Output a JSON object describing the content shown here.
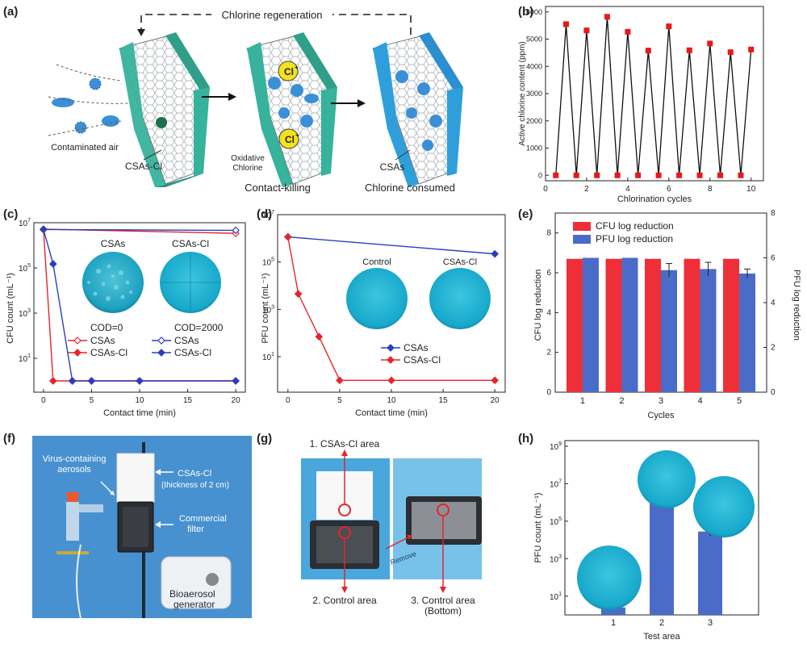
{
  "panel_labels": [
    "(a)",
    "(b)",
    "(c)",
    "(d)",
    "(e)",
    "(f)",
    "(g)",
    "(h)"
  ],
  "panel_a": {
    "regen_label": "Chlorine regeneration",
    "contaminated_air": "Contaminated air",
    "csas_cl": "CSAs-Cl",
    "oxidative_line1": "Oxidative",
    "oxidative_line2": "Chlorine",
    "cl_plus": "Cl",
    "cl_sup": "+",
    "csas": "CSAs",
    "contact_killing": "Contact-killing",
    "chlorine_consumed": "Chlorine consumed",
    "colors": {
      "teal": "#35b39a",
      "blue": "#2f9fdc",
      "microbe": "#3b8fd6",
      "badge": "#f3e21c"
    }
  },
  "panel_f": {
    "virus_line1": "Virus-containing",
    "virus_line2": "aerosols",
    "csas_line1": "CSAs-Cl",
    "csas_line2": "(thickness of 2 cm)",
    "commercial_line1": "Commercial",
    "commercial_line2": "filter",
    "bio_line1": "Bioaerosol",
    "bio_line2": "generator"
  },
  "panel_g": {
    "area1": "1. CSAs-Cl area",
    "area2": "2. Control area",
    "area3_line1": "3. Control area",
    "area3_line2": "(Bottom)",
    "remove": "Remove"
  },
  "chart_data": [
    {
      "id": "b",
      "type": "line",
      "xlabel": "Chlorination cycles",
      "ylabel": "Active chlorine content (ppm)",
      "xlim": [
        0,
        10.6
      ],
      "ylim": [
        -200,
        6200
      ],
      "xticks": [
        0,
        2,
        4,
        6,
        8,
        10
      ],
      "yticks": [
        0,
        1000,
        2000,
        3000,
        4000,
        5000,
        6000
      ],
      "series": [
        {
          "name": "Active chlorine",
          "x": [
            0.5,
            1,
            1.5,
            2,
            2.5,
            3,
            3.5,
            4,
            4.5,
            5,
            5.5,
            6,
            6.5,
            7,
            7.5,
            8,
            8.5,
            9,
            9.5,
            10
          ],
          "y": [
            0,
            5550,
            0,
            5320,
            0,
            5820,
            0,
            5270,
            0,
            4580,
            0,
            5470,
            0,
            4590,
            0,
            4840,
            0,
            4520,
            0,
            4620
          ],
          "line_color": "#111111",
          "marker_color": "#e8181b"
        }
      ]
    },
    {
      "id": "c",
      "type": "line",
      "xlabel": "Contact time (min)",
      "ylabel": "CFU count (mL⁻¹)",
      "xlim": [
        -1,
        21
      ],
      "ylog": true,
      "ylim_exp": [
        -0.5,
        7
      ],
      "xticks": [
        0,
        5,
        10,
        15,
        20
      ],
      "yticks": [
        {
          "value": 10,
          "base": "10",
          "exp": "1"
        },
        {
          "value": 1000,
          "base": "10",
          "exp": "3"
        },
        {
          "value": 100000,
          "base": "10",
          "exp": "5"
        },
        {
          "value": 10000000,
          "base": "10",
          "exp": "7"
        }
      ],
      "series": [
        {
          "name": "CSAs",
          "group": "COD=0",
          "color": "#e5252a",
          "marker": "diamond_open",
          "x": [
            0,
            20
          ],
          "y": [
            5200000,
            3400000
          ]
        },
        {
          "name": "CSAs-Cl",
          "group": "COD=0",
          "color": "#e5252a",
          "marker": "diamond",
          "x": [
            0,
            1,
            3,
            5,
            10,
            20
          ],
          "y": [
            5000000,
            1,
            1,
            1,
            1,
            1
          ]
        },
        {
          "name": "CSAs",
          "group": "COD=2000",
          "color": "#2b3fbd",
          "marker": "diamond_open",
          "x": [
            0,
            20
          ],
          "y": [
            5000000,
            4600000
          ]
        },
        {
          "name": "CSAs-Cl",
          "group": "COD=2000",
          "color": "#2b3fbd",
          "marker": "diamond",
          "x": [
            0,
            1,
            3,
            5,
            10,
            20
          ],
          "y": [
            5000000,
            150000,
            1,
            1,
            1,
            1
          ]
        }
      ],
      "legend": {
        "group1": "COD=0",
        "group2": "COD=2000"
      },
      "insets": [
        "CSAs",
        "CSAs-Cl"
      ]
    },
    {
      "id": "d",
      "type": "line",
      "xlabel": "Contact time (min)",
      "ylabel": "PFU count (mL⁻¹)",
      "xlim": [
        -1,
        21
      ],
      "ylog": true,
      "ylim_exp": [
        -0.5,
        7
      ],
      "xticks": [
        0,
        5,
        10,
        15,
        20
      ],
      "yticks": [
        {
          "value": 10,
          "base": "10",
          "exp": "1"
        },
        {
          "value": 1000,
          "base": "10",
          "exp": "3"
        },
        {
          "value": 100000,
          "base": "10",
          "exp": "5"
        },
        {
          "value": 10000000,
          "base": "10",
          "exp": "7"
        }
      ],
      "series": [
        {
          "name": "CSAs",
          "color": "#2b3fbd",
          "marker": "diamond",
          "x": [
            0,
            20
          ],
          "y": [
            1150000,
            220000
          ]
        },
        {
          "name": "CSAs-Cl",
          "color": "#e5252a",
          "marker": "diamond",
          "x": [
            0,
            1,
            3,
            5,
            10,
            20
          ],
          "y": [
            1150000,
            4500,
            70,
            1,
            1,
            1
          ]
        }
      ],
      "insets": [
        "Control",
        "CSAs-Cl"
      ]
    },
    {
      "id": "e",
      "type": "bar",
      "xlabel": "Cycles",
      "ylabel": "CFU log reduction",
      "ylabel_right": "PFU log reduction",
      "categories": [
        "1",
        "2",
        "3",
        "4",
        "5"
      ],
      "ylim": [
        0,
        9
      ],
      "ylim_right": [
        0,
        8
      ],
      "yticks": [
        0,
        2,
        4,
        6,
        8
      ],
      "yticks_right": [
        0,
        2,
        4,
        6,
        8
      ],
      "series": [
        {
          "name": "CFU log reduction",
          "axis": "left",
          "color": "#ee2f38",
          "values": [
            6.7,
            6.7,
            6.7,
            6.7,
            6.7
          ],
          "errors": [
            0,
            0,
            0,
            0,
            0
          ]
        },
        {
          "name": "PFU log reduction",
          "axis": "right",
          "color": "#4a6cc8",
          "values": [
            6.0,
            6.0,
            5.45,
            5.5,
            5.3
          ],
          "errors": [
            0,
            0,
            0.3,
            0.3,
            0.2
          ]
        }
      ]
    },
    {
      "id": "h",
      "type": "bar",
      "xlabel": "Test area",
      "ylabel": "PFU count (mL⁻¹)",
      "categories": [
        "1",
        "2",
        "3"
      ],
      "ylog": true,
      "ylim_exp": [
        0,
        9.3
      ],
      "yticks": [
        {
          "value": 10,
          "base": "10",
          "exp": "1"
        },
        {
          "value": 1000,
          "base": "10",
          "exp": "3"
        },
        {
          "value": 100000,
          "base": "10",
          "exp": "5"
        },
        {
          "value": 10000000,
          "base": "10",
          "exp": "7"
        },
        {
          "value": 1000000000,
          "base": "10",
          "exp": "9"
        }
      ],
      "series": [
        {
          "name": "PFU count",
          "color": "#4a6cc8",
          "values": [
            2.5,
            1500000,
            28000
          ],
          "errors_exp": [
            0,
            0.05,
            0.25
          ]
        }
      ]
    }
  ]
}
